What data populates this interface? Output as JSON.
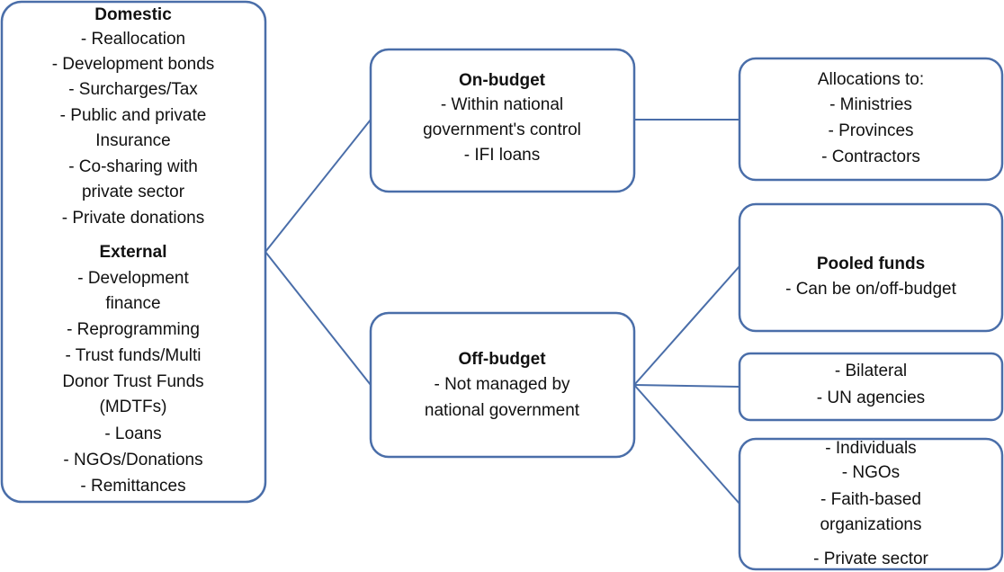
{
  "nodes": [
    {
      "sections": [
        {
          "heading": "Domestic",
          "lines": [
            "- Reallocation",
            "- Development bonds",
            "- Surcharges/Tax",
            "- Public and private",
            "Insurance",
            "- Co-sharing with",
            "private sector",
            "- Private donations"
          ]
        },
        {
          "heading": "External",
          "lines": [
            "- Development",
            "finance",
            "- Reprogramming",
            "- Trust funds/Multi",
            "Donor Trust Funds",
            "(MDTFs)",
            "- Loans",
            "- NGOs/Donations",
            "- Remittances"
          ]
        }
      ]
    },
    {
      "heading": "On-budget",
      "lines": [
        "- Within national",
        "government's control",
        "- IFI loans"
      ]
    },
    {
      "heading": "Off-budget",
      "lines": [
        "- Not managed by",
        "national government"
      ]
    },
    {
      "lines": [
        "Allocations to:",
        "- Ministries",
        "- Provinces",
        "- Contractors"
      ]
    },
    {
      "heading": "Pooled funds",
      "lines": [
        "- Can be on/off-budget"
      ]
    },
    {
      "lines": [
        "- Bilateral",
        "- UN agencies"
      ]
    },
    {
      "lines": [
        "- Individuals",
        "- NGOs",
        "- Faith-based",
        "organizations",
        "- Private sector"
      ]
    }
  ]
}
